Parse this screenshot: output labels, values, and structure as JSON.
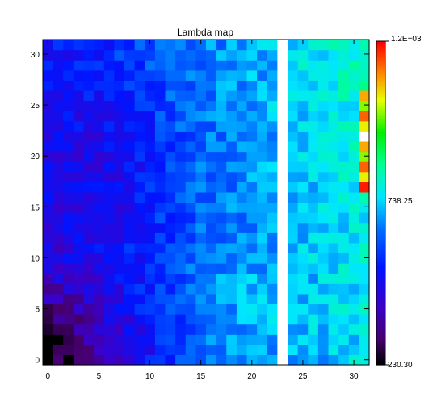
{
  "chart_data": {
    "type": "heatmap",
    "title": "Lambda map",
    "xlabel": "",
    "ylabel": "",
    "x_range": [
      0,
      31
    ],
    "y_range": [
      0,
      31
    ],
    "x_ticks": [
      "0",
      "5",
      "10",
      "15",
      "20",
      "25",
      "30"
    ],
    "y_ticks": [
      "0",
      "5",
      "10",
      "15",
      "20",
      "25",
      "30"
    ],
    "grid": false,
    "color_scale": {
      "min": 230.3,
      "max": 1200,
      "labels": [
        "230.30",
        "738.25",
        "1.2E+03"
      ],
      "palette": "rainbow (black-purple-blue-cyan-green-yellow-red)"
    },
    "colorbar_placement": "right",
    "missing_columns": [
      23
    ],
    "missing_color": "#ffffff",
    "notes": "32x32 grid of lambda values; low values (dark/purple) in the bottom-left, higher values (cyan/green) toward the right; column 23 blank"
  }
}
